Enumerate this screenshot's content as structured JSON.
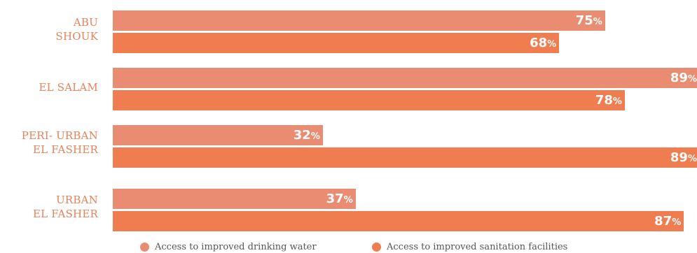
{
  "chart_data": {
    "type": "bar",
    "orientation": "horizontal",
    "categories": [
      "ABU\nSHOUK",
      "EL SALAM",
      "PERI- URBAN\nEL FASHER",
      "URBAN\nEL FASHER"
    ],
    "series": [
      {
        "name": "Access to improved drinking water",
        "values": [
          75,
          89,
          32,
          37
        ],
        "labels": [
          "75",
          "89",
          "32",
          "37"
        ],
        "color": "#e98c72"
      },
      {
        "name": "Access to improved sanitation facilities",
        "values": [
          68,
          78,
          89,
          87
        ],
        "labels": [
          "68",
          "78",
          "89",
          "87"
        ],
        "color": "#ef7d50"
      }
    ],
    "value_suffix": "%",
    "xlim": [
      0,
      89
    ],
    "grid": false,
    "legend_position": "bottom"
  },
  "colors": {
    "category_label": "#e8825a",
    "value_text": "#ffffff",
    "legend_text": "#555555"
  }
}
